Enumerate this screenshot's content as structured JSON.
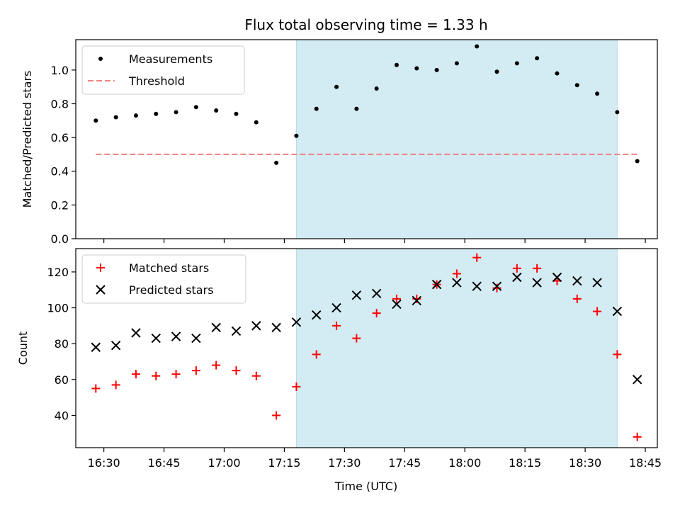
{
  "chart_data": [
    {
      "type": "scatter",
      "title": "Flux total observing time = 1.33 h",
      "ylabel": "Matched/Predicted stars",
      "xlim": [
        "16:23",
        "18:48"
      ],
      "ylim": [
        0,
        1.18
      ],
      "yticks": [
        "0.0",
        "0.2",
        "0.4",
        "0.6",
        "0.8",
        "1.0"
      ],
      "shaded_interval": [
        "17:18",
        "18:38"
      ],
      "shade_color": "#d3ebf2",
      "legend_placement": "upper-left",
      "series": [
        {
          "name": "Measurements",
          "marker": "dot",
          "color": "#000000",
          "x": [
            "16:28",
            "16:33",
            "16:38",
            "16:43",
            "16:48",
            "16:53",
            "16:58",
            "17:03",
            "17:08",
            "17:13",
            "17:18",
            "17:23",
            "17:28",
            "17:33",
            "17:38",
            "17:43",
            "17:48",
            "17:53",
            "17:58",
            "18:03",
            "18:08",
            "18:13",
            "18:18",
            "18:23",
            "18:28",
            "18:33",
            "18:38",
            "18:43"
          ],
          "y": [
            0.7,
            0.72,
            0.73,
            0.74,
            0.75,
            0.78,
            0.76,
            0.74,
            0.69,
            0.45,
            0.61,
            0.77,
            0.9,
            0.77,
            0.89,
            1.03,
            1.01,
            1.0,
            1.04,
            1.14,
            0.99,
            1.04,
            1.07,
            0.98,
            0.91,
            0.86,
            0.75,
            0.46
          ]
        },
        {
          "name": "Threshold",
          "marker": "dashed-line",
          "color": "#f08080",
          "x": [
            "16:28",
            "18:43"
          ],
          "y": [
            0.5,
            0.5
          ]
        }
      ]
    },
    {
      "type": "scatter",
      "xlabel": "Time (UTC)",
      "ylabel": "Count",
      "xlim": [
        "16:23",
        "18:48"
      ],
      "xticks": [
        "16:30",
        "16:45",
        "17:00",
        "17:15",
        "17:30",
        "17:45",
        "18:00",
        "18:15",
        "18:30",
        "18:45"
      ],
      "ylim": [
        22,
        133
      ],
      "yticks": [
        "40",
        "60",
        "80",
        "100",
        "120"
      ],
      "shaded_interval": [
        "17:18",
        "18:38"
      ],
      "shade_color": "#d3ebf2",
      "legend_placement": "upper-left",
      "series": [
        {
          "name": "Matched stars",
          "marker": "plus",
          "color": "#ff0000",
          "x": [
            "16:28",
            "16:33",
            "16:38",
            "16:43",
            "16:48",
            "16:53",
            "16:58",
            "17:03",
            "17:08",
            "17:13",
            "17:18",
            "17:23",
            "17:28",
            "17:33",
            "17:38",
            "17:43",
            "17:48",
            "17:53",
            "17:58",
            "18:03",
            "18:08",
            "18:13",
            "18:18",
            "18:23",
            "18:28",
            "18:33",
            "18:38",
            "18:43"
          ],
          "y": [
            55,
            57,
            63,
            62,
            63,
            65,
            68,
            65,
            62,
            40,
            56,
            74,
            90,
            83,
            97,
            105,
            105,
            113,
            119,
            128,
            111,
            122,
            122,
            115,
            105,
            98,
            74,
            28
          ]
        },
        {
          "name": "Predicted stars",
          "marker": "x",
          "color": "#000000",
          "x": [
            "16:28",
            "16:33",
            "16:38",
            "16:43",
            "16:48",
            "16:53",
            "16:58",
            "17:03",
            "17:08",
            "17:13",
            "17:18",
            "17:23",
            "17:28",
            "17:33",
            "17:38",
            "17:43",
            "17:48",
            "17:53",
            "17:58",
            "18:03",
            "18:08",
            "18:13",
            "18:18",
            "18:23",
            "18:28",
            "18:33",
            "18:38",
            "18:43"
          ],
          "y": [
            78,
            79,
            86,
            83,
            84,
            83,
            89,
            87,
            90,
            89,
            92,
            96,
            100,
            107,
            108,
            102,
            104,
            113,
            114,
            112,
            112,
            117,
            114,
            117,
            115,
            114,
            98,
            60
          ]
        }
      ]
    }
  ]
}
